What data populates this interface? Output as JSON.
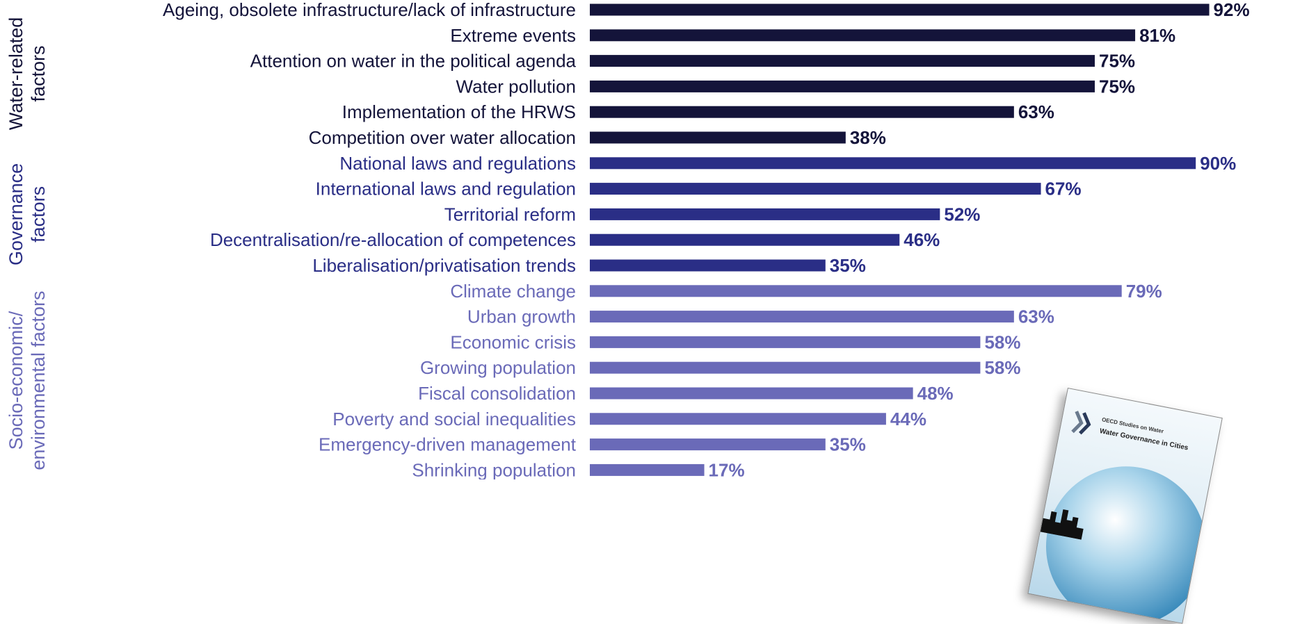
{
  "chart_data": {
    "type": "bar",
    "orientation": "horizontal",
    "value_suffix": "%",
    "xlim": [
      0,
      100
    ],
    "grid": false,
    "legend": "none",
    "groups": [
      {
        "name": "Water-related factors",
        "label_lines": [
          "Water-related",
          "factors"
        ],
        "color": "#14143a",
        "items": [
          {
            "label": "Ageing, obsolete infrastructure/lack of infrastructure",
            "value": 92
          },
          {
            "label": "Extreme events",
            "value": 81
          },
          {
            "label": "Attention on water in the political agenda",
            "value": 75
          },
          {
            "label": "Water pollution",
            "value": 75
          },
          {
            "label": "Implementation of the HRWS",
            "value": 63
          },
          {
            "label": "Competition over water allocation",
            "value": 38
          }
        ]
      },
      {
        "name": "Governance factors",
        "label_lines": [
          "Governance",
          "factors"
        ],
        "color": "#2a2e86",
        "items": [
          {
            "label": "National laws and regulations",
            "value": 90
          },
          {
            "label": "International laws and regulation",
            "value": 67
          },
          {
            "label": "Territorial reform",
            "value": 52
          },
          {
            "label": "Decentralisation/re-allocation of competences",
            "value": 46
          },
          {
            "label": "Liberalisation/privatisation trends",
            "value": 35
          }
        ]
      },
      {
        "name": "Socio-economic/ environmental factors",
        "label_lines": [
          "Socio-economic/",
          "environmental factors"
        ],
        "color": "#6a6ab8",
        "items": [
          {
            "label": "Climate change",
            "value": 79
          },
          {
            "label": "Urban growth",
            "value": 63
          },
          {
            "label": "Economic crisis",
            "value": 58
          },
          {
            "label": "Growing population",
            "value": 58
          },
          {
            "label": "Fiscal consolidation",
            "value": 48
          },
          {
            "label": "Poverty and social inequalities",
            "value": 44
          },
          {
            "label": "Emergency-driven management",
            "value": 35
          },
          {
            "label": "Shrinking population",
            "value": 17
          }
        ]
      }
    ]
  },
  "cover": {
    "series": "OECD Studies on Water",
    "title": "Water Governance in Cities"
  }
}
